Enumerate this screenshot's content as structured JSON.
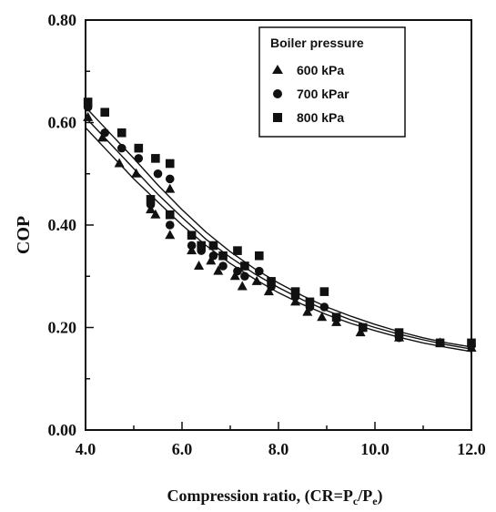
{
  "chart_data": {
    "type": "scatter",
    "title": "",
    "xlabel": "Compression ratio, (CR=P",
    "xlabel_sub1": "c",
    "xlabel_mid": "/P",
    "xlabel_sub2": "e",
    "xlabel_end": ")",
    "ylabel": "COP",
    "xlim": [
      4.0,
      12.0
    ],
    "ylim": [
      0.0,
      0.8
    ],
    "x_ticks": [
      "4.0",
      "6.0",
      "8.0",
      "10.0",
      "12.0"
    ],
    "y_ticks": [
      "0.00",
      "0.20",
      "0.40",
      "0.60",
      "0.80"
    ],
    "legend": {
      "title": "Boiler pressure",
      "placement": "top-right"
    },
    "series": [
      {
        "name": "600 kPa",
        "marker": "triangle",
        "points": [
          [
            4.05,
            0.61
          ],
          [
            4.35,
            0.57
          ],
          [
            4.7,
            0.52
          ],
          [
            5.05,
            0.5
          ],
          [
            5.35,
            0.43
          ],
          [
            5.45,
            0.42
          ],
          [
            5.75,
            0.47
          ],
          [
            5.75,
            0.38
          ],
          [
            6.2,
            0.35
          ],
          [
            6.35,
            0.32
          ],
          [
            6.6,
            0.33
          ],
          [
            6.75,
            0.31
          ],
          [
            7.1,
            0.3
          ],
          [
            7.25,
            0.28
          ],
          [
            7.55,
            0.29
          ],
          [
            7.8,
            0.27
          ],
          [
            8.35,
            0.25
          ],
          [
            8.6,
            0.23
          ],
          [
            8.9,
            0.22
          ],
          [
            9.2,
            0.21
          ],
          [
            9.7,
            0.19
          ],
          [
            10.5,
            0.18
          ],
          [
            11.35,
            0.17
          ],
          [
            12.0,
            0.16
          ]
        ],
        "fit": [
          [
            4.0,
            0.59
          ],
          [
            4.5,
            0.54
          ],
          [
            5.0,
            0.49
          ],
          [
            5.5,
            0.445
          ],
          [
            6.0,
            0.4
          ],
          [
            6.5,
            0.36
          ],
          [
            7.0,
            0.325
          ],
          [
            7.5,
            0.295
          ],
          [
            8.0,
            0.268
          ],
          [
            8.5,
            0.245
          ],
          [
            9.0,
            0.225
          ],
          [
            9.5,
            0.208
          ],
          [
            10.0,
            0.194
          ],
          [
            10.5,
            0.181
          ],
          [
            11.0,
            0.17
          ],
          [
            11.5,
            0.161
          ],
          [
            12.0,
            0.153
          ]
        ]
      },
      {
        "name": "700 kPar",
        "marker": "circle",
        "points": [
          [
            4.05,
            0.63
          ],
          [
            4.4,
            0.58
          ],
          [
            4.75,
            0.55
          ],
          [
            5.1,
            0.53
          ],
          [
            5.35,
            0.44
          ],
          [
            5.5,
            0.5
          ],
          [
            5.75,
            0.49
          ],
          [
            5.75,
            0.4
          ],
          [
            6.2,
            0.36
          ],
          [
            6.4,
            0.35
          ],
          [
            6.65,
            0.34
          ],
          [
            6.85,
            0.32
          ],
          [
            7.15,
            0.31
          ],
          [
            7.3,
            0.3
          ],
          [
            7.6,
            0.31
          ],
          [
            7.85,
            0.28
          ],
          [
            8.35,
            0.26
          ],
          [
            8.65,
            0.24
          ],
          [
            8.95,
            0.24
          ],
          [
            9.2,
            0.22
          ],
          [
            9.75,
            0.2
          ],
          [
            10.5,
            0.18
          ],
          [
            11.35,
            0.17
          ],
          [
            12.0,
            0.165
          ]
        ],
        "fit": [
          [
            4.0,
            0.61
          ],
          [
            4.5,
            0.56
          ],
          [
            5.0,
            0.51
          ],
          [
            5.5,
            0.46
          ],
          [
            6.0,
            0.415
          ],
          [
            6.5,
            0.372
          ],
          [
            7.0,
            0.337
          ],
          [
            7.5,
            0.305
          ],
          [
            8.0,
            0.278
          ],
          [
            8.5,
            0.254
          ],
          [
            9.0,
            0.233
          ],
          [
            9.5,
            0.215
          ],
          [
            10.0,
            0.2
          ],
          [
            10.5,
            0.187
          ],
          [
            11.0,
            0.176
          ],
          [
            11.5,
            0.166
          ],
          [
            12.0,
            0.158
          ]
        ]
      },
      {
        "name": "800 kPa",
        "marker": "square",
        "points": [
          [
            4.05,
            0.64
          ],
          [
            4.4,
            0.62
          ],
          [
            4.75,
            0.58
          ],
          [
            5.1,
            0.55
          ],
          [
            5.35,
            0.45
          ],
          [
            5.45,
            0.53
          ],
          [
            5.75,
            0.52
          ],
          [
            5.75,
            0.42
          ],
          [
            6.2,
            0.38
          ],
          [
            6.4,
            0.36
          ],
          [
            6.65,
            0.36
          ],
          [
            6.85,
            0.34
          ],
          [
            7.15,
            0.35
          ],
          [
            7.3,
            0.32
          ],
          [
            7.6,
            0.34
          ],
          [
            7.85,
            0.29
          ],
          [
            8.35,
            0.27
          ],
          [
            8.65,
            0.25
          ],
          [
            8.95,
            0.27
          ],
          [
            9.2,
            0.22
          ],
          [
            9.75,
            0.2
          ],
          [
            10.5,
            0.19
          ],
          [
            11.35,
            0.17
          ],
          [
            12.0,
            0.17
          ]
        ],
        "fit": [
          [
            4.0,
            0.63
          ],
          [
            4.5,
            0.58
          ],
          [
            5.0,
            0.53
          ],
          [
            5.5,
            0.478
          ],
          [
            6.0,
            0.43
          ],
          [
            6.5,
            0.386
          ],
          [
            7.0,
            0.348
          ],
          [
            7.5,
            0.315
          ],
          [
            8.0,
            0.287
          ],
          [
            8.5,
            0.262
          ],
          [
            9.0,
            0.24
          ],
          [
            9.5,
            0.222
          ],
          [
            10.0,
            0.206
          ],
          [
            10.5,
            0.192
          ],
          [
            11.0,
            0.18
          ],
          [
            11.5,
            0.17
          ],
          [
            12.0,
            0.162
          ]
        ]
      }
    ],
    "colors": {
      "ink": "#111111",
      "background": "#ffffff"
    }
  }
}
